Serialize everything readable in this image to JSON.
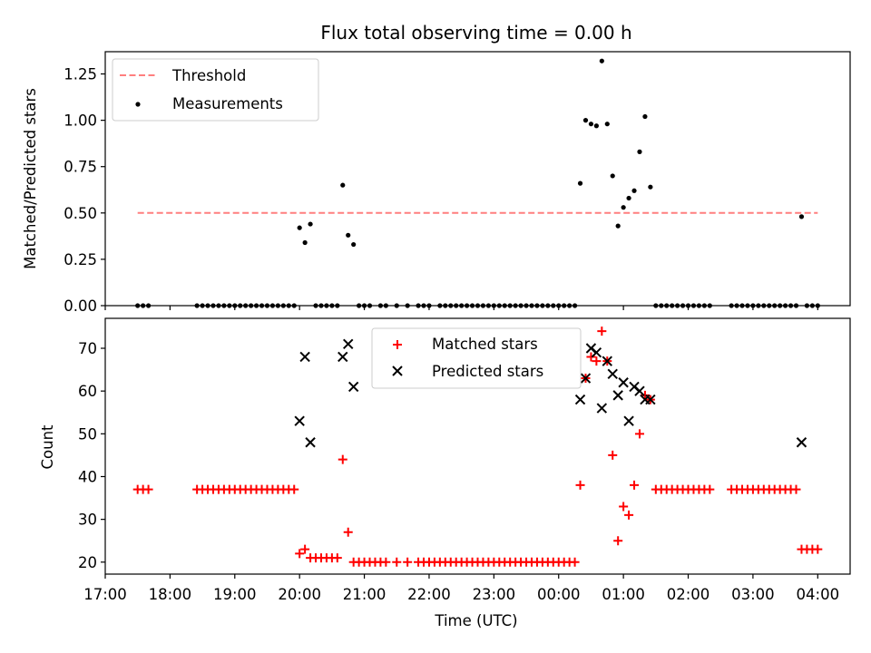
{
  "chart_data": [
    {
      "type": "scatter",
      "title": "Flux total observing time = 0.00 h",
      "xlabel": "",
      "ylabel": "Matched/Predicted stars",
      "xlim": [
        "17:00",
        "04:30"
      ],
      "ylim": [
        0.0,
        1.37
      ],
      "yticks": [
        "0.00",
        "0.25",
        "0.50",
        "0.75",
        "1.00",
        "1.25"
      ],
      "grid": false,
      "legend_position": "top-left",
      "threshold": {
        "name": "Threshold",
        "y": 0.5,
        "x_start": "17:30",
        "x_end": "04:00",
        "color": "#ff7f7f",
        "style": "dashed"
      },
      "series": [
        {
          "name": "Measurements",
          "color": "#000000",
          "marker": "dot",
          "points": [
            [
              "17:30",
              0
            ],
            [
              "17:35",
              0
            ],
            [
              "17:40",
              0
            ],
            [
              "18:25",
              0
            ],
            [
              "18:30",
              0
            ],
            [
              "18:35",
              0
            ],
            [
              "18:40",
              0
            ],
            [
              "18:45",
              0
            ],
            [
              "18:50",
              0
            ],
            [
              "18:55",
              0
            ],
            [
              "19:00",
              0
            ],
            [
              "19:05",
              0
            ],
            [
              "19:10",
              0
            ],
            [
              "19:15",
              0
            ],
            [
              "19:20",
              0
            ],
            [
              "19:25",
              0
            ],
            [
              "19:30",
              0
            ],
            [
              "19:35",
              0
            ],
            [
              "19:40",
              0
            ],
            [
              "19:45",
              0
            ],
            [
              "19:50",
              0
            ],
            [
              "19:55",
              0
            ],
            [
              "20:00",
              0.42
            ],
            [
              "20:05",
              0.34
            ],
            [
              "20:10",
              0.44
            ],
            [
              "20:15",
              0
            ],
            [
              "20:20",
              0
            ],
            [
              "20:25",
              0
            ],
            [
              "20:30",
              0
            ],
            [
              "20:35",
              0
            ],
            [
              "20:40",
              0.65
            ],
            [
              "20:45",
              0.38
            ],
            [
              "20:50",
              0.33
            ],
            [
              "20:55",
              0
            ],
            [
              "21:00",
              0
            ],
            [
              "21:05",
              0
            ],
            [
              "21:15",
              0
            ],
            [
              "21:20",
              0
            ],
            [
              "21:30",
              0
            ],
            [
              "21:40",
              0
            ],
            [
              "21:50",
              0
            ],
            [
              "21:55",
              0
            ],
            [
              "22:00",
              0
            ],
            [
              "22:10",
              0
            ],
            [
              "22:15",
              0
            ],
            [
              "22:20",
              0
            ],
            [
              "22:25",
              0
            ],
            [
              "22:30",
              0
            ],
            [
              "22:35",
              0
            ],
            [
              "22:40",
              0
            ],
            [
              "22:45",
              0
            ],
            [
              "22:50",
              0
            ],
            [
              "22:55",
              0
            ],
            [
              "23:00",
              0
            ],
            [
              "23:05",
              0
            ],
            [
              "23:10",
              0
            ],
            [
              "23:15",
              0
            ],
            [
              "23:20",
              0
            ],
            [
              "23:25",
              0
            ],
            [
              "23:30",
              0
            ],
            [
              "23:35",
              0
            ],
            [
              "23:40",
              0
            ],
            [
              "23:45",
              0
            ],
            [
              "23:50",
              0
            ],
            [
              "23:55",
              0
            ],
            [
              "00:00",
              0
            ],
            [
              "00:05",
              0
            ],
            [
              "00:10",
              0
            ],
            [
              "00:15",
              0
            ],
            [
              "00:20",
              0.66
            ],
            [
              "00:25",
              1.0
            ],
            [
              "00:30",
              0.98
            ],
            [
              "00:35",
              0.97
            ],
            [
              "00:40",
              1.32
            ],
            [
              "00:45",
              0.98
            ],
            [
              "00:50",
              0.7
            ],
            [
              "00:55",
              0.43
            ],
            [
              "01:00",
              0.53
            ],
            [
              "01:05",
              0.58
            ],
            [
              "01:10",
              0.62
            ],
            [
              "01:15",
              0.83
            ],
            [
              "01:20",
              1.02
            ],
            [
              "01:25",
              0.64
            ],
            [
              "01:30",
              0
            ],
            [
              "01:35",
              0
            ],
            [
              "01:40",
              0
            ],
            [
              "01:45",
              0
            ],
            [
              "01:50",
              0
            ],
            [
              "01:55",
              0
            ],
            [
              "02:00",
              0
            ],
            [
              "02:05",
              0
            ],
            [
              "02:10",
              0
            ],
            [
              "02:15",
              0
            ],
            [
              "02:20",
              0
            ],
            [
              "02:40",
              0
            ],
            [
              "02:45",
              0
            ],
            [
              "02:50",
              0
            ],
            [
              "02:55",
              0
            ],
            [
              "03:00",
              0
            ],
            [
              "03:05",
              0
            ],
            [
              "03:10",
              0
            ],
            [
              "03:15",
              0
            ],
            [
              "03:20",
              0
            ],
            [
              "03:25",
              0
            ],
            [
              "03:30",
              0
            ],
            [
              "03:35",
              0
            ],
            [
              "03:40",
              0
            ],
            [
              "03:45",
              0.48
            ],
            [
              "03:50",
              0
            ],
            [
              "03:55",
              0
            ],
            [
              "04:00",
              0
            ]
          ]
        }
      ]
    },
    {
      "type": "scatter",
      "title": "",
      "xlabel": "Time (UTC)",
      "ylabel": "Count",
      "xlim": [
        "17:00",
        "04:30"
      ],
      "ylim": [
        17.2,
        77
      ],
      "xticks": [
        "17:00",
        "18:00",
        "19:00",
        "20:00",
        "21:00",
        "22:00",
        "23:00",
        "00:00",
        "01:00",
        "02:00",
        "03:00",
        "04:00"
      ],
      "yticks": [
        "20",
        "30",
        "40",
        "50",
        "60",
        "70"
      ],
      "grid": false,
      "legend_position": "top-center",
      "series": [
        {
          "name": "Matched stars",
          "color": "#ff0000",
          "marker": "plus",
          "points": [
            [
              "17:30",
              37
            ],
            [
              "17:35",
              37
            ],
            [
              "17:40",
              37
            ],
            [
              "18:25",
              37
            ],
            [
              "18:30",
              37
            ],
            [
              "18:35",
              37
            ],
            [
              "18:40",
              37
            ],
            [
              "18:45",
              37
            ],
            [
              "18:50",
              37
            ],
            [
              "18:55",
              37
            ],
            [
              "19:00",
              37
            ],
            [
              "19:05",
              37
            ],
            [
              "19:10",
              37
            ],
            [
              "19:15",
              37
            ],
            [
              "19:20",
              37
            ],
            [
              "19:25",
              37
            ],
            [
              "19:30",
              37
            ],
            [
              "19:35",
              37
            ],
            [
              "19:40",
              37
            ],
            [
              "19:45",
              37
            ],
            [
              "19:50",
              37
            ],
            [
              "19:55",
              37
            ],
            [
              "20:00",
              22
            ],
            [
              "20:05",
              23
            ],
            [
              "20:10",
              21
            ],
            [
              "20:15",
              21
            ],
            [
              "20:20",
              21
            ],
            [
              "20:25",
              21
            ],
            [
              "20:30",
              21
            ],
            [
              "20:35",
              21
            ],
            [
              "20:40",
              44
            ],
            [
              "20:45",
              27
            ],
            [
              "20:50",
              20
            ],
            [
              "20:55",
              20
            ],
            [
              "21:00",
              20
            ],
            [
              "21:05",
              20
            ],
            [
              "21:10",
              20
            ],
            [
              "21:15",
              20
            ],
            [
              "21:20",
              20
            ],
            [
              "21:30",
              20
            ],
            [
              "21:40",
              20
            ],
            [
              "21:50",
              20
            ],
            [
              "21:55",
              20
            ],
            [
              "22:00",
              20
            ],
            [
              "22:05",
              20
            ],
            [
              "22:10",
              20
            ],
            [
              "22:15",
              20
            ],
            [
              "22:20",
              20
            ],
            [
              "22:25",
              20
            ],
            [
              "22:30",
              20
            ],
            [
              "22:35",
              20
            ],
            [
              "22:40",
              20
            ],
            [
              "22:45",
              20
            ],
            [
              "22:50",
              20
            ],
            [
              "22:55",
              20
            ],
            [
              "23:00",
              20
            ],
            [
              "23:05",
              20
            ],
            [
              "23:10",
              20
            ],
            [
              "23:15",
              20
            ],
            [
              "23:20",
              20
            ],
            [
              "23:25",
              20
            ],
            [
              "23:30",
              20
            ],
            [
              "23:35",
              20
            ],
            [
              "23:40",
              20
            ],
            [
              "23:45",
              20
            ],
            [
              "23:50",
              20
            ],
            [
              "23:55",
              20
            ],
            [
              "00:00",
              20
            ],
            [
              "00:05",
              20
            ],
            [
              "00:10",
              20
            ],
            [
              "00:15",
              20
            ],
            [
              "00:20",
              38
            ],
            [
              "00:25",
              63
            ],
            [
              "00:30",
              68
            ],
            [
              "00:35",
              67
            ],
            [
              "00:40",
              74
            ],
            [
              "00:45",
              67
            ],
            [
              "00:50",
              45
            ],
            [
              "00:55",
              25
            ],
            [
              "01:00",
              33
            ],
            [
              "01:05",
              31
            ],
            [
              "01:10",
              38
            ],
            [
              "01:15",
              50
            ],
            [
              "01:20",
              59
            ],
            [
              "01:25",
              58
            ],
            [
              "01:30",
              37
            ],
            [
              "01:35",
              37
            ],
            [
              "01:40",
              37
            ],
            [
              "01:45",
              37
            ],
            [
              "01:50",
              37
            ],
            [
              "01:55",
              37
            ],
            [
              "02:00",
              37
            ],
            [
              "02:05",
              37
            ],
            [
              "02:10",
              37
            ],
            [
              "02:15",
              37
            ],
            [
              "02:20",
              37
            ],
            [
              "02:40",
              37
            ],
            [
              "02:45",
              37
            ],
            [
              "02:50",
              37
            ],
            [
              "02:55",
              37
            ],
            [
              "03:00",
              37
            ],
            [
              "03:05",
              37
            ],
            [
              "03:10",
              37
            ],
            [
              "03:15",
              37
            ],
            [
              "03:20",
              37
            ],
            [
              "03:25",
              37
            ],
            [
              "03:30",
              37
            ],
            [
              "03:35",
              37
            ],
            [
              "03:40",
              37
            ],
            [
              "03:45",
              23
            ],
            [
              "03:50",
              23
            ],
            [
              "03:55",
              23
            ],
            [
              "04:00",
              23
            ]
          ]
        },
        {
          "name": "Predicted stars",
          "color": "#000000",
          "marker": "x",
          "points": [
            [
              "20:00",
              53
            ],
            [
              "20:05",
              68
            ],
            [
              "20:10",
              48
            ],
            [
              "20:40",
              68
            ],
            [
              "20:45",
              71
            ],
            [
              "20:50",
              61
            ],
            [
              "00:20",
              58
            ],
            [
              "00:25",
              63
            ],
            [
              "00:30",
              70
            ],
            [
              "00:35",
              69
            ],
            [
              "00:40",
              56
            ],
            [
              "00:45",
              67
            ],
            [
              "00:50",
              64
            ],
            [
              "00:55",
              59
            ],
            [
              "01:00",
              62
            ],
            [
              "01:05",
              53
            ],
            [
              "01:10",
              61
            ],
            [
              "01:15",
              60
            ],
            [
              "01:20",
              58
            ],
            [
              "01:25",
              58
            ],
            [
              "03:45",
              48
            ]
          ]
        }
      ]
    }
  ]
}
